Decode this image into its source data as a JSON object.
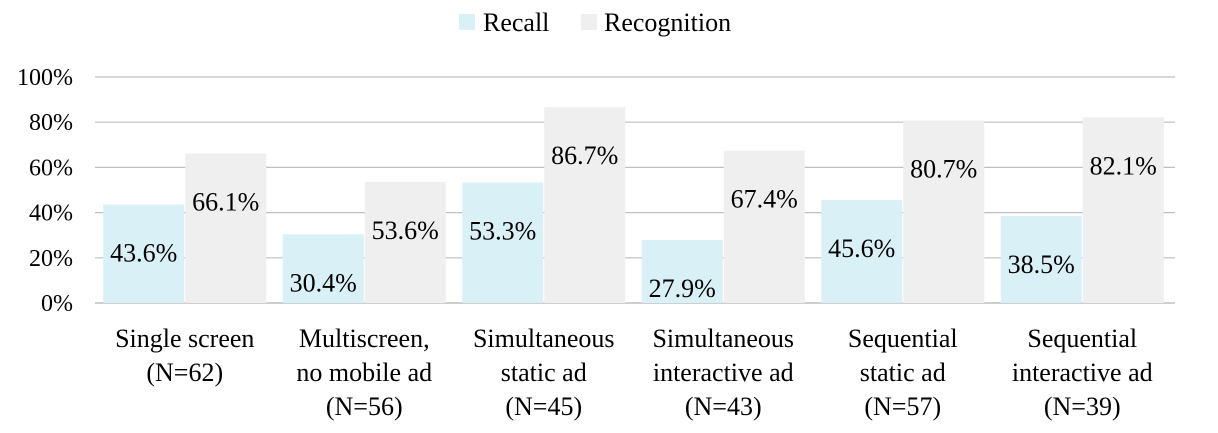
{
  "chart_data": {
    "type": "bar",
    "categories": [
      [
        "Single screen",
        "(N=62)"
      ],
      [
        "Multiscreen,",
        "no mobile ad",
        "(N=56)"
      ],
      [
        "Simultaneous",
        "static ad",
        "(N=45)"
      ],
      [
        "Simultaneous",
        "interactive ad",
        "(N=43)"
      ],
      [
        "Sequential",
        "static ad",
        "(N=57)"
      ],
      [
        "Sequential",
        "interactive ad",
        "(N=39)"
      ]
    ],
    "series": [
      {
        "name": "Recall",
        "color": "#daf0f7",
        "values": [
          43.6,
          30.4,
          53.3,
          27.9,
          45.6,
          38.5
        ],
        "labels": [
          "43.6%",
          "30.4%",
          "53.3%",
          "27.9%",
          "45.6%",
          "38.5%"
        ]
      },
      {
        "name": "Recognition",
        "color": "#efefef",
        "values": [
          66.1,
          53.6,
          86.7,
          67.4,
          80.7,
          82.1
        ],
        "labels": [
          "66.1%",
          "53.6%",
          "86.7%",
          "67.4%",
          "80.7%",
          "82.1%"
        ]
      }
    ],
    "ylim": [
      0,
      100
    ],
    "yticks": [
      "0%",
      "20%",
      "40%",
      "60%",
      "80%",
      "100%"
    ],
    "grid": true,
    "gridline_color": "#bfbfbf",
    "legend_position": "top-center"
  }
}
